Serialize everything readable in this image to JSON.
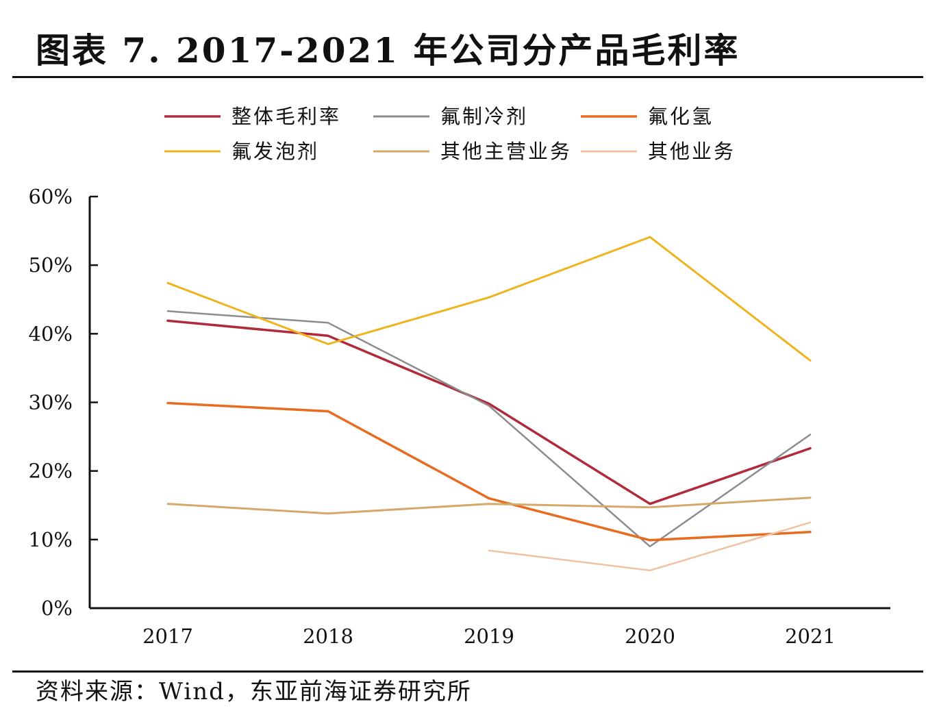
{
  "title": "图表 7.   2017-2021 年公司分产品毛利率",
  "source": "资料来源：Wind，东亚前海证券研究所",
  "chart_data": {
    "type": "line",
    "x": [
      "2017",
      "2018",
      "2019",
      "2020",
      "2021"
    ],
    "ylim": [
      0,
      60
    ],
    "yticks": [
      "0%",
      "10%",
      "20%",
      "30%",
      "40%",
      "50%",
      "60%"
    ],
    "ytick_values": [
      0,
      10,
      20,
      30,
      40,
      50,
      60
    ],
    "legend_position": "top",
    "grid": false,
    "series": [
      {
        "name": "整体毛利率",
        "color": "#b02a3a",
        "width": 3.5,
        "values": [
          41.9,
          39.7,
          29.8,
          15.2,
          23.3
        ]
      },
      {
        "name": "氟制冷剂",
        "color": "#8c8c8c",
        "width": 2.5,
        "values": [
          43.3,
          41.6,
          29.5,
          9.0,
          25.3
        ]
      },
      {
        "name": "氟化氢",
        "color": "#e86b1f",
        "width": 3.5,
        "values": [
          29.9,
          28.7,
          16.0,
          9.9,
          11.1
        ]
      },
      {
        "name": "氟发泡剂",
        "color": "#efb41d",
        "width": 3,
        "values": [
          47.4,
          38.5,
          45.3,
          54.1,
          36.1
        ]
      },
      {
        "name": "其他主营业务",
        "color": "#d6a96a",
        "width": 3,
        "values": [
          15.2,
          13.8,
          15.2,
          14.7,
          16.1
        ]
      },
      {
        "name": "其他业务",
        "color": "#f0c2a2",
        "width": 2.5,
        "values": [
          null,
          null,
          8.4,
          5.5,
          12.5
        ]
      }
    ]
  }
}
